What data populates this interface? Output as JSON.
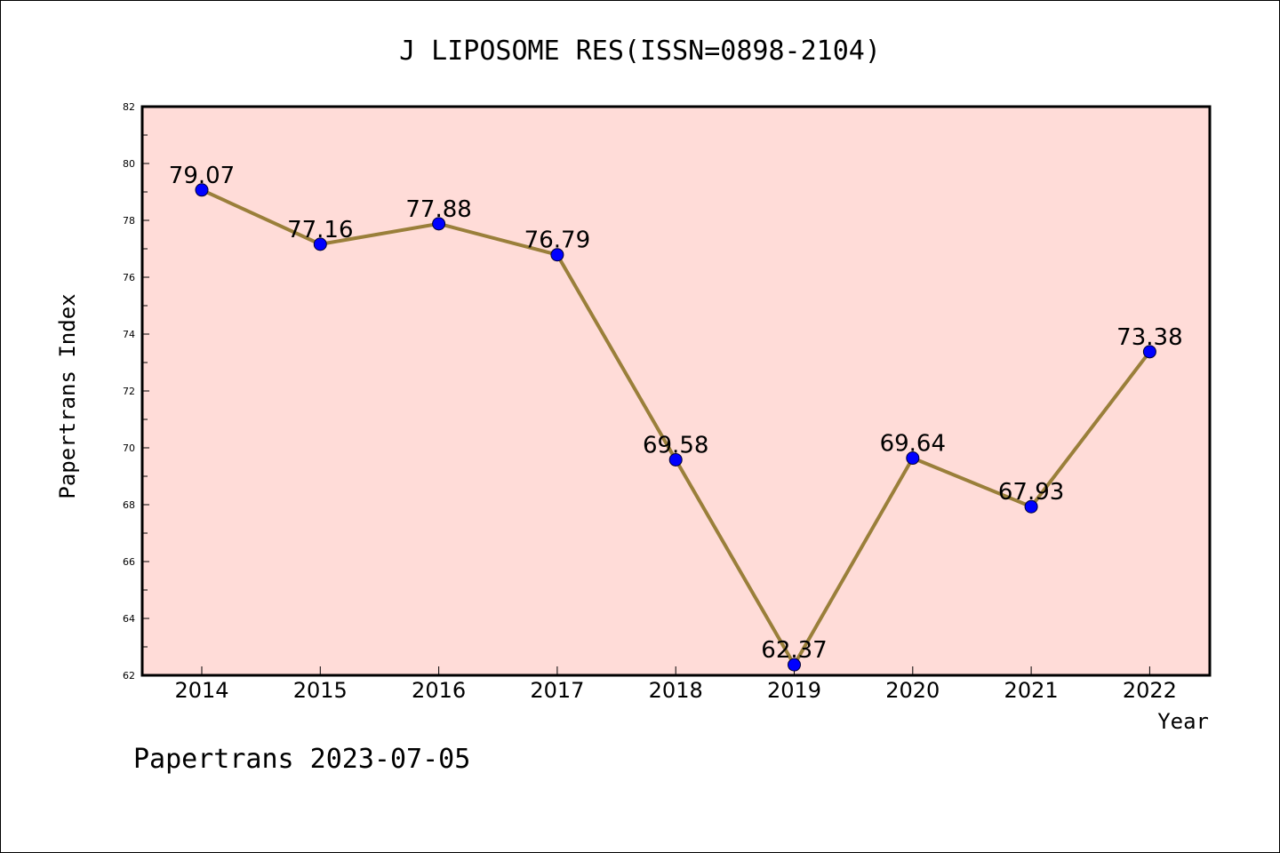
{
  "chart_data": {
    "type": "line",
    "title": "J LIPOSOME RES(ISSN=0898-2104)",
    "xlabel": "Year",
    "ylabel": "Papertrans Index",
    "categories": [
      "2014",
      "2015",
      "2016",
      "2017",
      "2018",
      "2019",
      "2020",
      "2021",
      "2022"
    ],
    "series": [
      {
        "values": [
          79.07,
          77.16,
          77.88,
          76.79,
          69.58,
          62.37,
          69.64,
          67.93,
          73.38
        ]
      }
    ],
    "data_labels": [
      "79.07",
      "77.16",
      "77.88",
      "76.79",
      "69.58",
      "62.37",
      "69.64",
      "67.93",
      "73.38"
    ],
    "ylim": [
      62,
      82
    ],
    "yticks": [
      62,
      64,
      66,
      68,
      70,
      72,
      74,
      76,
      78,
      80,
      82
    ],
    "ytick_labels": [
      "62",
      "64",
      "66",
      "68",
      "70",
      "72",
      "74",
      "76",
      "78",
      "80",
      "82"
    ],
    "grid": false,
    "colors": {
      "plot_background": "#ffdcd8",
      "line": "#9a7f3a",
      "marker": "#0000ff"
    }
  },
  "footer": "Papertrans 2023-07-05"
}
